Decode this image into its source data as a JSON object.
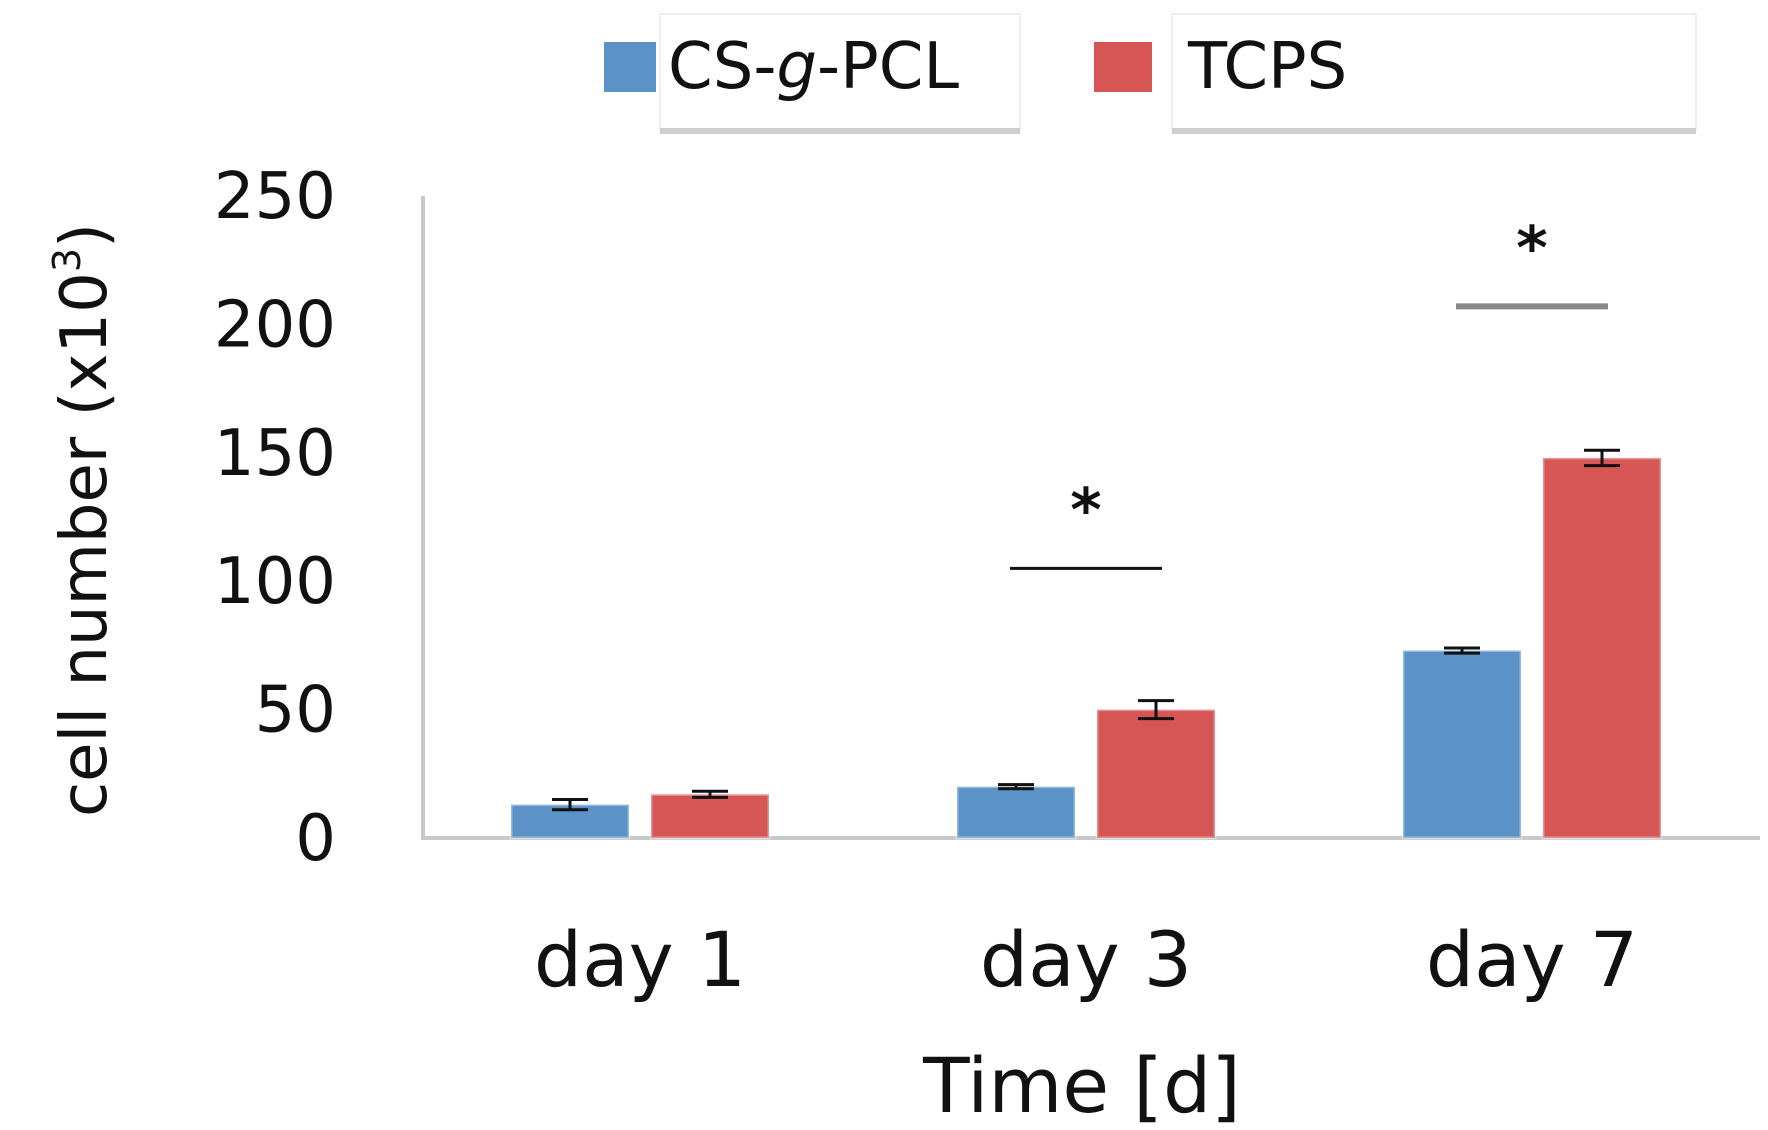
{
  "chart_data": {
    "type": "bar",
    "title": "",
    "xlabel": "Time [d]",
    "ylabel": "cell number (x10",
    "ylabel_sup": "3",
    "ylabel_close": ")",
    "categories": [
      "day 1",
      "day 3",
      "day 7"
    ],
    "ylim": [
      0,
      250
    ],
    "yticks": [
      0,
      50,
      100,
      150,
      200,
      250
    ],
    "ytick_labels": [
      "0",
      "50",
      "100",
      "150",
      "200",
      "250"
    ],
    "grid": false,
    "legend_position": "top",
    "series": [
      {
        "name_prefix": "CS-",
        "name_italic": "g",
        "name_suffix": "-PCL",
        "color": "#5b93c8",
        "values": [
          13,
          20,
          73
        ],
        "errors": [
          2,
          0.8,
          1
        ]
      },
      {
        "name": "TCPS",
        "color": "#d65656",
        "values": [
          17,
          50,
          148
        ],
        "errors": [
          1.2,
          3.5,
          3
        ]
      }
    ],
    "series_fix_note": "",
    "significance": [
      {
        "category_index": 1,
        "label": "*",
        "y": 105,
        "line_color": "#111111"
      },
      {
        "category_index": 2,
        "label": "*",
        "y": 207,
        "line_color": "#888888"
      }
    ]
  }
}
